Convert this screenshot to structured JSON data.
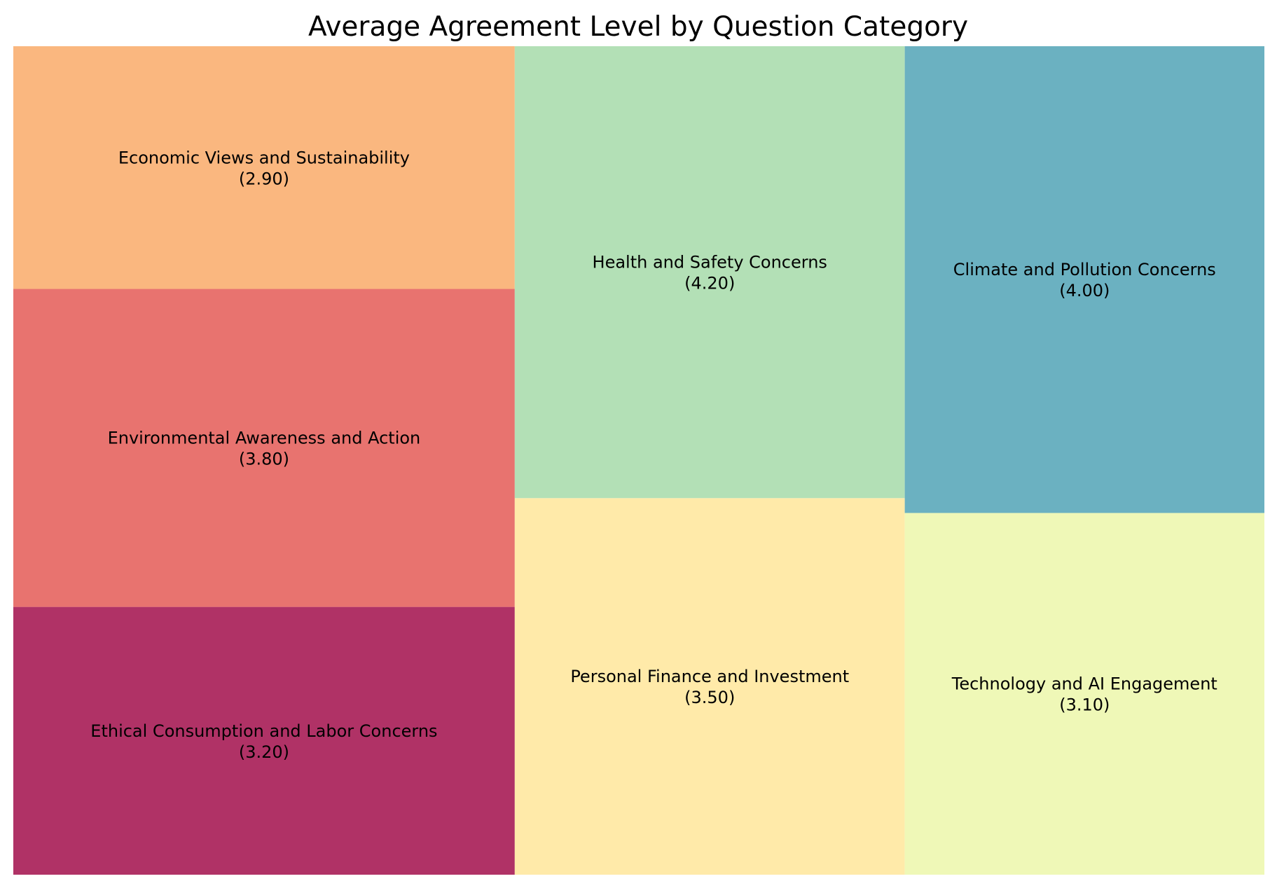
{
  "chart_data": {
    "type": "treemap",
    "title": "Average Agreement Level by Question Category",
    "items": [
      {
        "label": "Ethical Consumption and Labor Concerns",
        "value_text": "(3.20)",
        "value": 3.2,
        "color": "#B03266"
      },
      {
        "label": "Environmental Awareness and Action",
        "value_text": "(3.80)",
        "value": 3.8,
        "color": "#E8736F"
      },
      {
        "label": "Economic Views and Sustainability",
        "value_text": "(2.90)",
        "value": 2.9,
        "color": "#FAB77F"
      },
      {
        "label": "Personal Finance and Investment",
        "value_text": "(3.50)",
        "value": 3.5,
        "color": "#FFEAA9"
      },
      {
        "label": "Health and Safety Concerns",
        "value_text": "(4.20)",
        "value": 4.2,
        "color": "#B3E0B6"
      },
      {
        "label": "Technology and AI Engagement",
        "value_text": "(3.10)",
        "value": 3.1,
        "color": "#EFF8B7"
      },
      {
        "label": "Climate and Pollution Concerns",
        "value_text": "(4.00)",
        "value": 4.0,
        "color": "#6BB1C1"
      }
    ]
  }
}
